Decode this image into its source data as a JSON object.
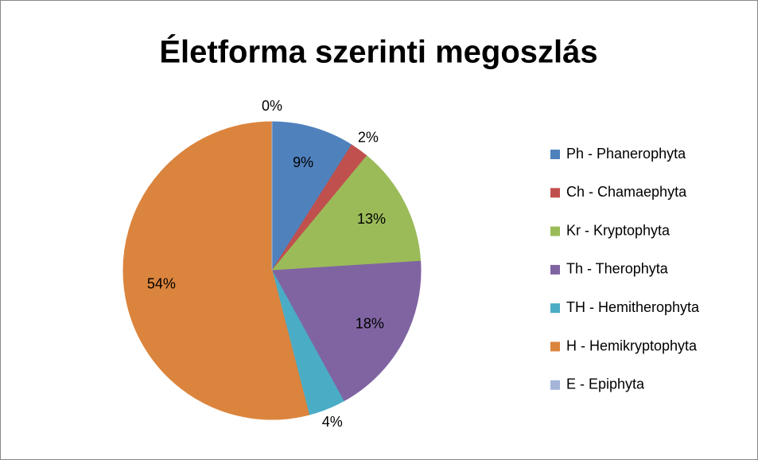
{
  "chart_data": {
    "type": "pie",
    "title": "Életforma szerinti megoszlás",
    "categories": [
      "Ph - Phanerophyta",
      "Ch - Chamaephyta",
      "Kr - Kryptophyta",
      "Th - Therophyta",
      "TH - Hemitherophyta",
      "H - Hemikryptophyta",
      "E - Epiphyta"
    ],
    "values": [
      9,
      2,
      13,
      18,
      4,
      54,
      0
    ],
    "value_labels": [
      "9%",
      "2%",
      "13%",
      "18%",
      "4%",
      "54%",
      "0%"
    ],
    "colors": [
      "#4f81bd",
      "#c0504d",
      "#9bbb59",
      "#8064a2",
      "#4bacc6",
      "#db843d",
      "#a5b5d9"
    ],
    "legend": "right"
  }
}
